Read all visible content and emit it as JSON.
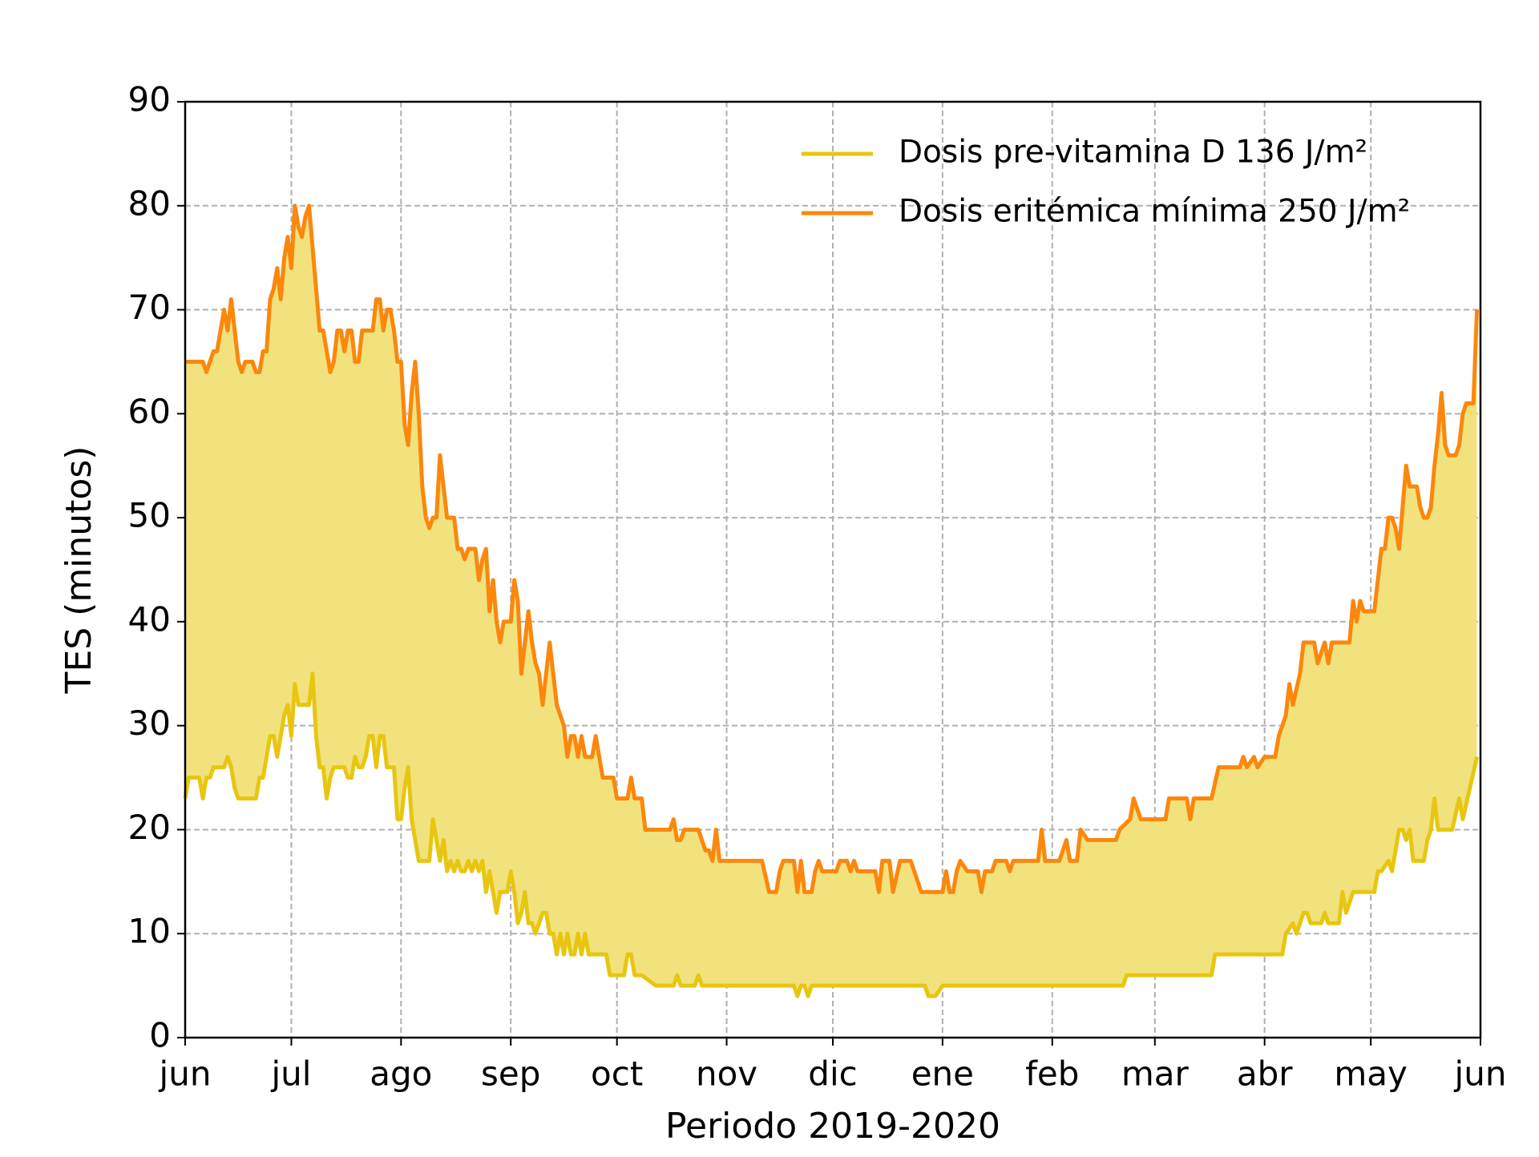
{
  "chart_data": {
    "type": "line",
    "x_label": "Periodo 2019-2020",
    "y_label": "TES (minutos)",
    "xlim": [
      0,
      366
    ],
    "xticks": [
      {
        "value": 0,
        "label": "jun"
      },
      {
        "value": 30,
        "label": "jul"
      },
      {
        "value": 61,
        "label": "ago"
      },
      {
        "value": 92,
        "label": "sep"
      },
      {
        "value": 122,
        "label": "oct"
      },
      {
        "value": 153,
        "label": "nov"
      },
      {
        "value": 183,
        "label": "dic"
      },
      {
        "value": 214,
        "label": "ene"
      },
      {
        "value": 245,
        "label": "feb"
      },
      {
        "value": 274,
        "label": "mar"
      },
      {
        "value": 305,
        "label": "abr"
      },
      {
        "value": 335,
        "label": "may"
      },
      {
        "value": 366,
        "label": "jun"
      }
    ],
    "ylim": [
      0,
      90
    ],
    "yticks": [
      0,
      10,
      20,
      30,
      40,
      50,
      60,
      70,
      80,
      90
    ],
    "grid": true,
    "legend_loc": "upper right",
    "fill_between": true,
    "fill_color": "#f1e27e",
    "series": [
      {
        "name": "Dosis pre-vitamina D 136 J/m²",
        "color": "#e8c610",
        "x": [
          0,
          1,
          4,
          5,
          6,
          7,
          8,
          11,
          12,
          13,
          14,
          15,
          20,
          21,
          22,
          23,
          24,
          25,
          26,
          28,
          29,
          30,
          31,
          32,
          35,
          36,
          37,
          38,
          39,
          40,
          41,
          42,
          45,
          46,
          47,
          48,
          49,
          50,
          51,
          52,
          53,
          54,
          55,
          56,
          57,
          58,
          59,
          60,
          61,
          62,
          63,
          64,
          65,
          66,
          68,
          69,
          70,
          71,
          72,
          73,
          74,
          75,
          76,
          77,
          78,
          79,
          80,
          81,
          82,
          83,
          84,
          85,
          86,
          87,
          88,
          89,
          90,
          91,
          92,
          93,
          94,
          95,
          96,
          97,
          98,
          99,
          100,
          101,
          102,
          103,
          104,
          105,
          106,
          107,
          108,
          109,
          110,
          111,
          112,
          113,
          114,
          119,
          120,
          124,
          125,
          126,
          127,
          129,
          133,
          138,
          139,
          140,
          144,
          145,
          146,
          172,
          173,
          174,
          175,
          176,
          177,
          209,
          210,
          212,
          214,
          265,
          266,
          290,
          291,
          310,
          311,
          313,
          314,
          316,
          317,
          318,
          321,
          322,
          323,
          326,
          327,
          328,
          330,
          336,
          337,
          338,
          340,
          341,
          343,
          344,
          345,
          346,
          347,
          350,
          351,
          352,
          353,
          354,
          358,
          360,
          361,
          365
        ],
        "values": [
          23,
          25,
          25,
          23,
          25,
          25,
          26,
          26,
          27,
          26,
          24,
          23,
          23,
          25,
          25,
          27,
          29,
          29,
          27,
          31,
          32,
          29,
          34,
          32,
          32,
          35,
          29,
          26,
          26,
          23,
          25,
          26,
          26,
          25,
          25,
          27,
          26,
          26,
          27,
          29,
          29,
          26,
          29,
          29,
          26,
          26,
          26,
          21,
          21,
          24,
          26,
          21,
          19,
          17,
          17,
          17,
          21,
          19,
          17,
          19,
          16,
          17,
          16,
          17,
          16,
          16,
          17,
          16,
          17,
          16,
          17,
          14,
          16,
          14,
          12,
          14,
          14,
          14,
          16,
          14,
          11,
          12,
          14,
          11,
          11,
          10,
          11,
          12,
          12,
          10,
          10,
          8,
          10,
          8,
          10,
          8,
          8,
          10,
          8,
          10,
          8,
          8,
          6,
          6,
          8,
          8,
          6,
          6,
          5,
          5,
          6,
          5,
          5,
          6,
          5,
          5,
          4,
          5,
          5,
          4,
          5,
          5,
          4,
          4,
          5,
          5,
          6,
          6,
          8,
          8,
          10,
          11,
          10,
          12,
          12,
          11,
          11,
          12,
          11,
          11,
          14,
          12,
          14,
          14,
          16,
          16,
          17,
          16,
          20,
          20,
          19,
          20,
          17,
          17,
          19,
          20,
          23,
          20,
          20,
          23,
          21,
          27
        ]
      },
      {
        "name": "Dosis eritémica mínima 250 J/m²",
        "color": "#fb870d",
        "x": [
          0,
          5,
          6,
          8,
          9,
          10,
          11,
          12,
          13,
          14,
          15,
          16,
          17,
          19,
          20,
          21,
          22,
          23,
          24,
          25,
          26,
          27,
          28,
          29,
          30,
          31,
          32,
          33,
          34,
          35,
          36,
          37,
          38,
          39,
          40,
          41,
          42,
          43,
          44,
          45,
          46,
          47,
          48,
          49,
          50,
          51,
          52,
          53,
          54,
          55,
          56,
          57,
          58,
          59,
          60,
          61,
          62,
          63,
          64,
          65,
          66,
          67,
          68,
          69,
          70,
          71,
          72,
          73,
          74,
          75,
          76,
          77,
          78,
          79,
          80,
          81,
          82,
          83,
          84,
          85,
          86,
          87,
          88,
          89,
          90,
          91,
          92,
          93,
          94,
          95,
          96,
          97,
          98,
          99,
          100,
          101,
          102,
          103,
          104,
          105,
          106,
          107,
          108,
          109,
          110,
          111,
          112,
          113,
          114,
          115,
          116,
          117,
          118,
          119,
          120,
          121,
          122,
          123,
          124,
          125,
          126,
          127,
          128,
          129,
          130,
          137,
          138,
          139,
          140,
          141,
          142,
          145,
          146,
          147,
          148,
          149,
          150,
          151,
          163,
          165,
          167,
          168,
          169,
          172,
          173,
          174,
          175,
          177,
          178,
          179,
          180,
          184,
          185,
          187,
          188,
          189,
          190,
          195,
          196,
          197,
          199,
          200,
          202,
          205,
          208,
          214,
          215,
          216,
          217,
          218,
          219,
          221,
          224,
          225,
          226,
          228,
          229,
          232,
          233,
          234,
          241,
          242,
          243,
          247,
          249,
          250,
          252,
          253,
          255,
          263,
          264,
          267,
          268,
          270,
          277,
          278,
          283,
          284,
          285,
          290,
          292,
          298,
          299,
          300,
          302,
          303,
          305,
          308,
          309,
          311,
          312,
          313,
          315,
          316,
          319,
          320,
          322,
          323,
          324,
          329,
          330,
          331,
          332,
          333,
          336,
          337,
          338,
          339,
          340,
          341,
          342,
          343,
          344,
          345,
          346,
          348,
          349,
          350,
          351,
          352,
          353,
          354,
          355,
          356,
          357,
          359,
          360,
          361,
          362,
          364,
          365
        ],
        "values": [
          65,
          65,
          64,
          66,
          66,
          68,
          70,
          68,
          71,
          68,
          65,
          64,
          65,
          65,
          64,
          64,
          66,
          66,
          71,
          72,
          74,
          71,
          75,
          77,
          74,
          80,
          78,
          77,
          79,
          80,
          76,
          72,
          68,
          68,
          66,
          64,
          65,
          68,
          68,
          66,
          68,
          68,
          65,
          65,
          68,
          68,
          68,
          68,
          71,
          71,
          68,
          70,
          70,
          68,
          65,
          65,
          59,
          57,
          62,
          65,
          60,
          53,
          50,
          49,
          50,
          50,
          56,
          53,
          50,
          50,
          50,
          47,
          47,
          46,
          47,
          47,
          47,
          44,
          46,
          47,
          41,
          44,
          40,
          38,
          40,
          40,
          40,
          44,
          42,
          35,
          38,
          41,
          38,
          36,
          35,
          32,
          35,
          38,
          35,
          32,
          31,
          30,
          27,
          29,
          29,
          27,
          29,
          27,
          27,
          27,
          29,
          27,
          25,
          25,
          25,
          25,
          23,
          23,
          23,
          23,
          25,
          23,
          23,
          23,
          20,
          20,
          21,
          19,
          19,
          20,
          20,
          20,
          19,
          18,
          18,
          17,
          20,
          17,
          17,
          14,
          14,
          16,
          17,
          17,
          14,
          17,
          14,
          14,
          16,
          17,
          16,
          16,
          17,
          17,
          16,
          17,
          16,
          16,
          14,
          17,
          17,
          14,
          17,
          17,
          14,
          14,
          16,
          14,
          14,
          16,
          17,
          16,
          16,
          14,
          16,
          16,
          17,
          17,
          16,
          17,
          17,
          20,
          17,
          17,
          19,
          17,
          17,
          20,
          19,
          19,
          20,
          21,
          23,
          21,
          21,
          23,
          23,
          21,
          23,
          23,
          26,
          26,
          27,
          26,
          27,
          26,
          27,
          27,
          29,
          31,
          34,
          32,
          35,
          38,
          38,
          36,
          38,
          36,
          38,
          38,
          42,
          40,
          42,
          41,
          41,
          44,
          47,
          47,
          50,
          50,
          49,
          47,
          51,
          55,
          53,
          53,
          51,
          50,
          50,
          51,
          55,
          58,
          62,
          57,
          56,
          56,
          57,
          60,
          61,
          61,
          70
        ]
      }
    ]
  }
}
